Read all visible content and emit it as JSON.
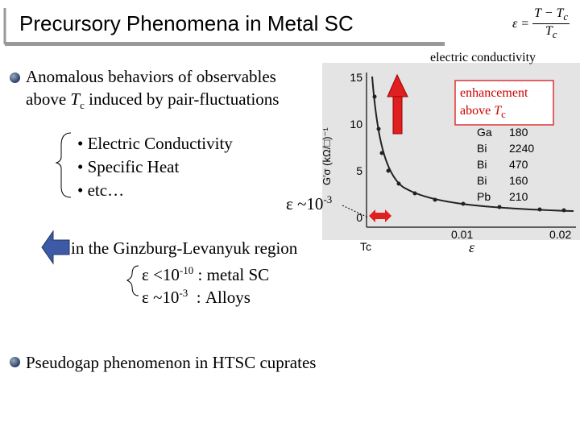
{
  "title": "Precursory Phenomena in Metal SC",
  "formula": {
    "lhs": "ε =",
    "numerator": "T − T",
    "numerator_sub": "c",
    "denominator": "T",
    "denominator_sub": "c"
  },
  "item1": {
    "line1": "Anomalous behaviors of observables",
    "line2_a": "above ",
    "line2_T": "T",
    "line2_sub": "c",
    "line2_b": " induced by pair-fluctuations"
  },
  "sublist": [
    "• Electric Conductivity",
    "• Specific Heat",
    "• etc…"
  ],
  "epsilon_note": {
    "text": "ε ~10",
    "sup": "-3"
  },
  "region": "in the Ginzburg-Levanyuk region",
  "cases": [
    {
      "text": "ε <10",
      "sup": "-10",
      "rest": " : metal SC"
    },
    {
      "text": "ε ~10",
      "sup": "-3",
      "rest": "  : Alloys"
    }
  ],
  "item2": "Pseudogap phenomenon in HTSC cuprates",
  "figure": {
    "caption": "electric conductivity",
    "annotation": "enhancement",
    "annotation_2": "above ",
    "annotation_T": "T",
    "annotation_sub": "c",
    "yticks": [
      "15",
      "10",
      "5",
      "0"
    ],
    "xticks": [
      "0.01",
      "0.02"
    ],
    "ylabel": "G′σ (kΩ/□)⁻¹",
    "tc_label": "Tc",
    "xlabel": "ε",
    "legend": [
      [
        "Ga",
        "180"
      ],
      [
        "Bi",
        "2240"
      ],
      [
        "Bi",
        "470"
      ],
      [
        "Bi",
        "160"
      ],
      [
        "Pb",
        "210"
      ]
    ]
  }
}
